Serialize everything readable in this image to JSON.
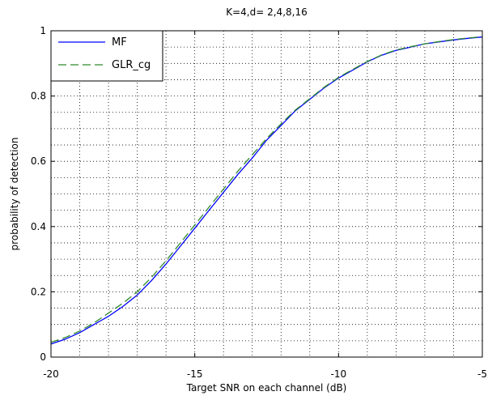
{
  "chart_data": {
    "type": "line",
    "title": "K=4,d= 2,4,8,16",
    "xlabel": "Target SNR on each channel (dB)",
    "ylabel": "probability of detection",
    "xlim": [
      -20,
      -5
    ],
    "ylim": [
      0,
      1
    ],
    "grid": true,
    "legend_position": "top-left",
    "x_ticks": [
      -20,
      -15,
      -10,
      -5
    ],
    "x_tick_labels": [
      "-20",
      "-15",
      "-10",
      "-5"
    ],
    "y_ticks": [
      0,
      0.2,
      0.4,
      0.6,
      0.8,
      1
    ],
    "y_tick_labels": [
      "0",
      "0.2",
      "0.4",
      "0.6",
      "0.8",
      "1"
    ],
    "series": [
      {
        "name": "MF",
        "color": "#0000ff",
        "dash": "solid",
        "x": [
          -20,
          -19.5,
          -19,
          -18.5,
          -18,
          -17.5,
          -17,
          -16.5,
          -16,
          -15.5,
          -15,
          -14.5,
          -14,
          -13.5,
          -13,
          -12.5,
          -12,
          -11.5,
          -11,
          -10.5,
          -10,
          -9.5,
          -9,
          -8.5,
          -8,
          -7.5,
          -7,
          -6.5,
          -6,
          -5.5,
          -5
        ],
        "y": [
          0.04,
          0.055,
          0.075,
          0.1,
          0.125,
          0.155,
          0.19,
          0.235,
          0.285,
          0.34,
          0.395,
          0.45,
          0.505,
          0.56,
          0.61,
          0.665,
          0.71,
          0.755,
          0.79,
          0.825,
          0.855,
          0.88,
          0.905,
          0.925,
          0.94,
          0.95,
          0.96,
          0.966,
          0.972,
          0.977,
          0.981
        ]
      },
      {
        "name": "GLR_cg",
        "color": "#2e8b2e",
        "dash": "dashed",
        "x": [
          -20,
          -19.5,
          -19,
          -18.5,
          -18,
          -17.5,
          -17,
          -16.5,
          -16,
          -15.5,
          -15,
          -14.5,
          -14,
          -13.5,
          -13,
          -12.5,
          -12,
          -11.5,
          -11,
          -10.5,
          -10,
          -9.5,
          -9,
          -8.5,
          -8,
          -7.5,
          -7,
          -6.5,
          -6,
          -5.5,
          -5
        ],
        "y": [
          0.045,
          0.06,
          0.08,
          0.105,
          0.135,
          0.165,
          0.2,
          0.245,
          0.295,
          0.35,
          0.405,
          0.46,
          0.515,
          0.57,
          0.62,
          0.67,
          0.715,
          0.757,
          0.792,
          0.827,
          0.857,
          0.882,
          0.906,
          0.926,
          0.941,
          0.951,
          0.96,
          0.967,
          0.973,
          0.978,
          0.982
        ]
      }
    ]
  }
}
